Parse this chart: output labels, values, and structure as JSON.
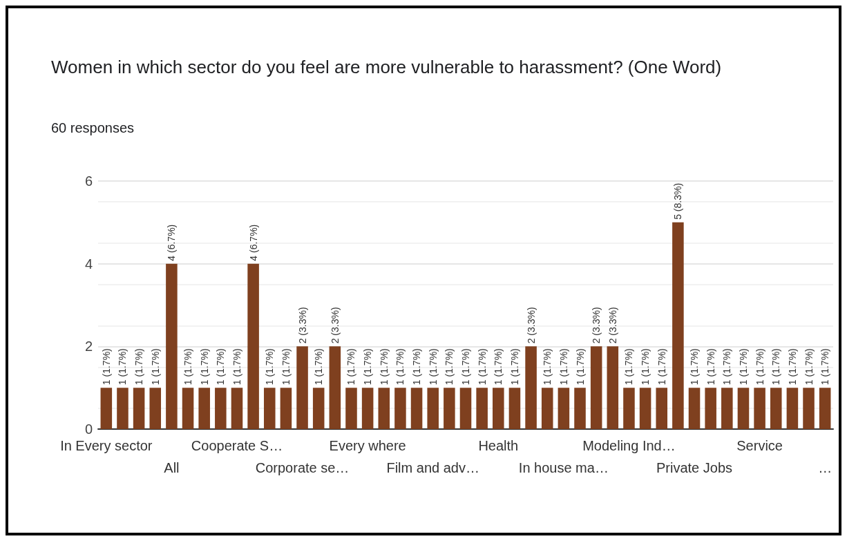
{
  "chart_data": {
    "type": "bar",
    "title": "Women in which sector do you feel are more vulnerable to harassment? (One Word)",
    "subtitle": "60 responses",
    "categories": [
      "In Every sector",
      null,
      null,
      null,
      "All",
      null,
      null,
      null,
      "Cooperate S…",
      null,
      null,
      null,
      "Corporate se…",
      null,
      null,
      null,
      "Every where",
      null,
      null,
      null,
      "Film and adv…",
      null,
      null,
      null,
      "Health",
      null,
      null,
      null,
      "In house ma…",
      null,
      null,
      null,
      "Modeling Ind…",
      null,
      null,
      null,
      "Private Jobs",
      null,
      null,
      null,
      "Service",
      null,
      null,
      null,
      "…"
    ],
    "values": [
      1,
      1,
      1,
      1,
      4,
      1,
      1,
      1,
      1,
      4,
      1,
      1,
      2,
      1,
      2,
      1,
      1,
      1,
      1,
      1,
      1,
      1,
      1,
      1,
      1,
      1,
      2,
      1,
      1,
      1,
      2,
      2,
      1,
      1,
      1,
      5,
      1,
      1,
      1,
      1,
      1,
      1,
      1,
      1,
      1
    ],
    "value_labels": [
      "1 (1.7%)",
      "1 (1.7%)",
      "1 (1.7%)",
      "1 (1.7%)",
      "4 (6.7%)",
      "1 (1.7%)",
      "1 (1.7%)",
      "1 (1.7%)",
      "1 (1.7%)",
      "4 (6.7%)",
      "1 (1.7%)",
      "1 (1.7%)",
      "2 (3.3%)",
      "1 (1.7%)",
      "2 (3.3%)",
      "1 (1.7%)",
      "1 (1.7%)",
      "1 (1.7%)",
      "1 (1.7%)",
      "1 (1.7%)",
      "1 (1.7%)",
      "1 (1.7%)",
      "1 (1.7%)",
      "1 (1.7%)",
      "1 (1.7%)",
      "1 (1.7%)",
      "2 (3.3%)",
      "1 (1.7%)",
      "1 (1.7%)",
      "1 (1.7%)",
      "2 (3.3%)",
      "2 (3.3%)",
      "1 (1.7%)",
      "1 (1.7%)",
      "1 (1.7%)",
      "5 (8.3%)",
      "1 (1.7%)",
      "1 (1.7%)",
      "1 (1.7%)",
      "1 (1.7%)",
      "1 (1.7%)",
      "1 (1.7%)",
      "1 (1.7%)",
      "1 (1.7%)",
      "1 (1.7%)"
    ],
    "color": "#7f401f",
    "ylim": [
      0,
      6
    ],
    "yticks": [
      0,
      2,
      4,
      6
    ],
    "grid": "y"
  }
}
